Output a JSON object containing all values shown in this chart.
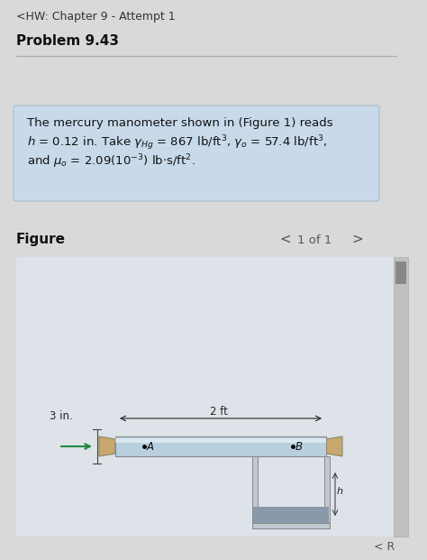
{
  "title_header": "<HW: Chapter 9 - Attempt 1",
  "problem": "Problem 9.43",
  "problem_text_line1": "The mercury manometer shown in (Figure 1) reads",
  "problem_text_line2": "h = 0.12 in. Take γHg = 867 lb/ft³, γo = 57.4 lb/ft³,",
  "problem_text_line3": "and μo = 2.09(10⁻³) lb·s/ft².",
  "figure_label": "Figure",
  "page_info": "1 of 1",
  "bg_color": "#d9d9d9",
  "box_color": "#c8daea",
  "figure_bg": "#dde3e8",
  "pipe_color_blue": "#b8cfe0",
  "pipe_color_tan": "#c8a86e",
  "pipe_outline": "#888888",
  "manometer_color": "#c0c8d0",
  "label_3in": "3 in.",
  "label_2ft": "2 ft",
  "label_A": "A",
  "label_B": "B",
  "label_h": "h"
}
